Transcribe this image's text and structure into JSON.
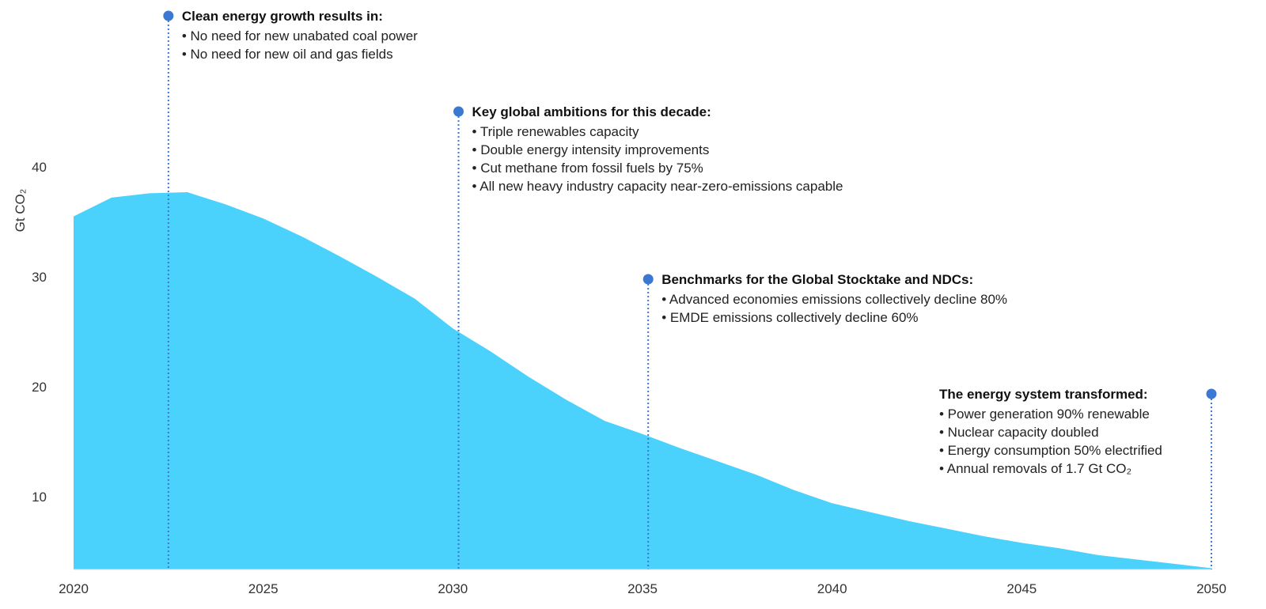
{
  "chart_data": {
    "type": "area",
    "title": "",
    "xlabel": "",
    "ylabel": "Gt CO₂",
    "xlim": [
      2020,
      2050
    ],
    "ylim": [
      3.5,
      50
    ],
    "grid": false,
    "x_ticks": [
      2020,
      2025,
      2030,
      2035,
      2040,
      2045,
      2050
    ],
    "y_ticks": [
      10,
      20,
      30,
      40
    ],
    "fill_color": "#4ad2fc",
    "marker_color": "#3a78d4",
    "series": [
      {
        "name": "CO2 emissions",
        "x": [
          2020,
          2021,
          2022,
          2023,
          2024,
          2025,
          2026,
          2027,
          2028,
          2029,
          2030,
          2031,
          2032,
          2033,
          2034,
          2035,
          2036,
          2037,
          2038,
          2039,
          2040,
          2041,
          2042,
          2043,
          2044,
          2045,
          2046,
          2047,
          2048,
          2049,
          2050
        ],
        "values": [
          35.5,
          37.2,
          37.6,
          37.7,
          36.6,
          35.3,
          33.7,
          31.9,
          30.0,
          28.0,
          25.3,
          23.2,
          20.9,
          18.8,
          16.9,
          15.7,
          14.4,
          13.2,
          12.0,
          10.6,
          9.4,
          8.6,
          7.8,
          7.1,
          6.4,
          5.8,
          5.3,
          4.7,
          4.3,
          3.9,
          3.5
        ]
      }
    ],
    "annotations": [
      {
        "year": 2022.5,
        "title": "Clean energy growth results in:",
        "items": [
          "• No need for new unabated coal power",
          "• No need for new oil and gas fields"
        ]
      },
      {
        "year": 2030.15,
        "title": "Key global ambitions for this decade:",
        "items": [
          "• Triple renewables capacity",
          "• Double energy intensity improvements",
          "• Cut methane from fossil fuels by 75%",
          "• All new heavy industry capacity near-zero-emissions capable"
        ]
      },
      {
        "year": 2035.15,
        "title": "Benchmarks for the Global Stocktake and NDCs:",
        "items": [
          "• Advanced economies emissions collectively decline 80%",
          "• EMDE emissions collectively decline 60%"
        ]
      },
      {
        "year": 2050,
        "title": "The energy system transformed:",
        "items": [
          "• Power generation 90% renewable",
          "• Nuclear capacity doubled",
          "• Energy consumption 50% electrified",
          "• Annual removals of 1.7 Gt CO₂"
        ]
      }
    ]
  }
}
